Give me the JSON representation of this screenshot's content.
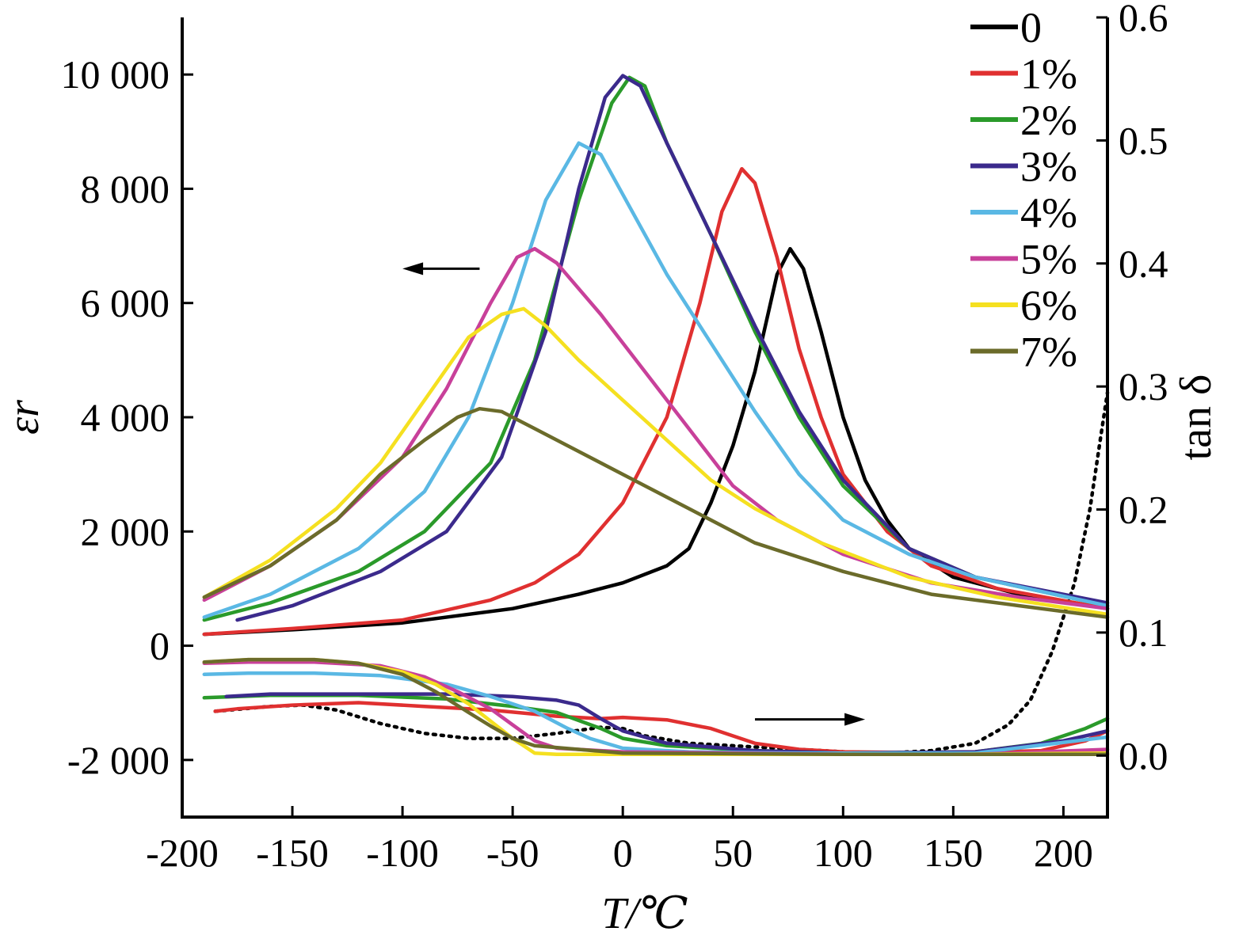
{
  "chart_data": {
    "type": "line",
    "xlabel": "T/℃",
    "ylabel_left": "εr",
    "ylabel_right": "tan δ",
    "xlim": [
      -200,
      220
    ],
    "ylim_left": [
      -3000,
      11000
    ],
    "ylim_right": [
      -0.05,
      0.6
    ],
    "grid": false,
    "legend_position": "top-right",
    "x_ticks": [
      {
        "value": -200,
        "label": "-200"
      },
      {
        "value": -150,
        "label": "-150"
      },
      {
        "value": -100,
        "label": "-100"
      },
      {
        "value": -50,
        "label": "-50"
      },
      {
        "value": 0,
        "label": "0"
      },
      {
        "value": 50,
        "label": "50"
      },
      {
        "value": 100,
        "label": "100"
      },
      {
        "value": 150,
        "label": "150"
      },
      {
        "value": 200,
        "label": "200"
      }
    ],
    "y_left_ticks": [
      {
        "value": 10000,
        "label": "10 000"
      },
      {
        "value": 8000,
        "label": "8 000"
      },
      {
        "value": 6000,
        "label": "6 000"
      },
      {
        "value": 4000,
        "label": "4 000"
      },
      {
        "value": 2000,
        "label": "2 000"
      },
      {
        "value": 0,
        "label": "0"
      },
      {
        "value": -2000,
        "label": "-2 000"
      }
    ],
    "y_right_ticks": [
      {
        "value": 0.6,
        "label": "0.6"
      },
      {
        "value": 0.5,
        "label": "0.5"
      },
      {
        "value": 0.4,
        "label": "0.4"
      },
      {
        "value": 0.3,
        "label": "0.3"
      },
      {
        "value": 0.2,
        "label": "0.2"
      },
      {
        "value": 0.1,
        "label": "0.1"
      },
      {
        "value": 0.0,
        "label": "0.0"
      }
    ],
    "series": [
      {
        "name": "0",
        "color": "#000000",
        "epsilon": [
          [
            -190,
            200
          ],
          [
            -150,
            280
          ],
          [
            -100,
            400
          ],
          [
            -50,
            650
          ],
          [
            -20,
            900
          ],
          [
            0,
            1100
          ],
          [
            20,
            1400
          ],
          [
            30,
            1700
          ],
          [
            40,
            2500
          ],
          [
            50,
            3500
          ],
          [
            60,
            4800
          ],
          [
            70,
            6500
          ],
          [
            76,
            6950
          ],
          [
            82,
            6600
          ],
          [
            90,
            5500
          ],
          [
            100,
            4000
          ],
          [
            110,
            2900
          ],
          [
            120,
            2200
          ],
          [
            130,
            1700
          ],
          [
            150,
            1200
          ],
          [
            180,
            900
          ],
          [
            220,
            650
          ]
        ],
        "tan_delta": [
          [
            -185,
            0.036
          ],
          [
            -160,
            0.04
          ],
          [
            -145,
            0.041
          ],
          [
            -130,
            0.037
          ],
          [
            -110,
            0.026
          ],
          [
            -90,
            0.018
          ],
          [
            -70,
            0.014
          ],
          [
            -50,
            0.014
          ],
          [
            -30,
            0.018
          ],
          [
            -10,
            0.023
          ],
          [
            0,
            0.022
          ],
          [
            10,
            0.016
          ],
          [
            30,
            0.01
          ],
          [
            50,
            0.008
          ],
          [
            70,
            0.006
          ],
          [
            100,
            0.003
          ],
          [
            120,
            0.002
          ],
          [
            140,
            0.004
          ],
          [
            160,
            0.01
          ],
          [
            175,
            0.025
          ],
          [
            185,
            0.045
          ],
          [
            195,
            0.085
          ],
          [
            205,
            0.14
          ],
          [
            212,
            0.2
          ],
          [
            217,
            0.26
          ],
          [
            220,
            0.295
          ]
        ]
      },
      {
        "name": "1%",
        "color": "#e03030",
        "epsilon": [
          [
            -190,
            200
          ],
          [
            -150,
            300
          ],
          [
            -100,
            450
          ],
          [
            -60,
            800
          ],
          [
            -40,
            1100
          ],
          [
            -20,
            1600
          ],
          [
            0,
            2500
          ],
          [
            20,
            4000
          ],
          [
            35,
            6000
          ],
          [
            45,
            7600
          ],
          [
            54,
            8350
          ],
          [
            60,
            8100
          ],
          [
            70,
            6800
          ],
          [
            80,
            5200
          ],
          [
            90,
            4000
          ],
          [
            100,
            3000
          ],
          [
            120,
            2000
          ],
          [
            140,
            1400
          ],
          [
            170,
            1000
          ],
          [
            220,
            650
          ]
        ],
        "tan_delta": [
          [
            -185,
            0.036
          ],
          [
            -175,
            0.038
          ],
          [
            -150,
            0.041
          ],
          [
            -120,
            0.043
          ],
          [
            -90,
            0.04
          ],
          [
            -60,
            0.037
          ],
          [
            -30,
            0.032
          ],
          [
            -10,
            0.03
          ],
          [
            0,
            0.031
          ],
          [
            20,
            0.029
          ],
          [
            40,
            0.022
          ],
          [
            60,
            0.01
          ],
          [
            80,
            0.005
          ],
          [
            100,
            0.003
          ],
          [
            150,
            0.002
          ],
          [
            190,
            0.004
          ],
          [
            210,
            0.012
          ],
          [
            220,
            0.02
          ]
        ]
      },
      {
        "name": "2%",
        "color": "#2a9a2a",
        "epsilon": [
          [
            -190,
            450
          ],
          [
            -160,
            750
          ],
          [
            -120,
            1300
          ],
          [
            -90,
            2000
          ],
          [
            -60,
            3200
          ],
          [
            -40,
            5000
          ],
          [
            -20,
            7800
          ],
          [
            -5,
            9500
          ],
          [
            3,
            9950
          ],
          [
            10,
            9800
          ],
          [
            20,
            8800
          ],
          [
            40,
            7200
          ],
          [
            60,
            5500
          ],
          [
            80,
            4000
          ],
          [
            100,
            2800
          ],
          [
            130,
            1700
          ],
          [
            160,
            1200
          ],
          [
            220,
            700
          ]
        ],
        "tan_delta": [
          [
            -190,
            0.047
          ],
          [
            -160,
            0.049
          ],
          [
            -120,
            0.049
          ],
          [
            -80,
            0.046
          ],
          [
            -50,
            0.04
          ],
          [
            -30,
            0.035
          ],
          [
            -10,
            0.022
          ],
          [
            0,
            0.014
          ],
          [
            20,
            0.008
          ],
          [
            60,
            0.004
          ],
          [
            100,
            0.002
          ],
          [
            160,
            0.003
          ],
          [
            190,
            0.01
          ],
          [
            210,
            0.022
          ],
          [
            220,
            0.03
          ]
        ]
      },
      {
        "name": "3%",
        "color": "#3b2a8c",
        "epsilon": [
          [
            -175,
            450
          ],
          [
            -150,
            700
          ],
          [
            -110,
            1300
          ],
          [
            -80,
            2000
          ],
          [
            -55,
            3300
          ],
          [
            -35,
            5500
          ],
          [
            -20,
            8000
          ],
          [
            -8,
            9600
          ],
          [
            0,
            9980
          ],
          [
            8,
            9800
          ],
          [
            20,
            8800
          ],
          [
            40,
            7200
          ],
          [
            60,
            5600
          ],
          [
            80,
            4100
          ],
          [
            100,
            2900
          ],
          [
            130,
            1700
          ],
          [
            160,
            1200
          ],
          [
            220,
            750
          ]
        ],
        "tan_delta": [
          [
            -180,
            0.048
          ],
          [
            -160,
            0.05
          ],
          [
            -120,
            0.05
          ],
          [
            -80,
            0.05
          ],
          [
            -50,
            0.048
          ],
          [
            -30,
            0.045
          ],
          [
            -20,
            0.041
          ],
          [
            -10,
            0.03
          ],
          [
            0,
            0.02
          ],
          [
            20,
            0.01
          ],
          [
            60,
            0.004
          ],
          [
            100,
            0.002
          ],
          [
            160,
            0.003
          ],
          [
            200,
            0.012
          ],
          [
            220,
            0.02
          ]
        ]
      },
      {
        "name": "4%",
        "color": "#5ab8e4",
        "epsilon": [
          [
            -190,
            500
          ],
          [
            -160,
            900
          ],
          [
            -120,
            1700
          ],
          [
            -90,
            2700
          ],
          [
            -70,
            4000
          ],
          [
            -50,
            6000
          ],
          [
            -35,
            7800
          ],
          [
            -20,
            8800
          ],
          [
            -10,
            8600
          ],
          [
            0,
            7900
          ],
          [
            20,
            6500
          ],
          [
            40,
            5300
          ],
          [
            60,
            4100
          ],
          [
            80,
            3000
          ],
          [
            100,
            2200
          ],
          [
            130,
            1600
          ],
          [
            160,
            1200
          ],
          [
            220,
            700
          ]
        ],
        "tan_delta": [
          [
            -190,
            0.066
          ],
          [
            -170,
            0.067
          ],
          [
            -140,
            0.067
          ],
          [
            -110,
            0.065
          ],
          [
            -80,
            0.058
          ],
          [
            -60,
            0.048
          ],
          [
            -40,
            0.036
          ],
          [
            -25,
            0.022
          ],
          [
            -15,
            0.014
          ],
          [
            0,
            0.006
          ],
          [
            30,
            0.003
          ],
          [
            80,
            0.002
          ],
          [
            160,
            0.002
          ],
          [
            220,
            0.015
          ]
        ]
      },
      {
        "name": "5%",
        "color": "#c8409a",
        "epsilon": [
          [
            -190,
            800
          ],
          [
            -160,
            1400
          ],
          [
            -130,
            2200
          ],
          [
            -100,
            3300
          ],
          [
            -80,
            4500
          ],
          [
            -60,
            6000
          ],
          [
            -48,
            6800
          ],
          [
            -40,
            6950
          ],
          [
            -30,
            6700
          ],
          [
            -10,
            5800
          ],
          [
            10,
            4800
          ],
          [
            30,
            3800
          ],
          [
            50,
            2800
          ],
          [
            70,
            2200
          ],
          [
            100,
            1600
          ],
          [
            140,
            1100
          ],
          [
            180,
            850
          ],
          [
            220,
            650
          ]
        ],
        "tan_delta": [
          [
            -190,
            0.075
          ],
          [
            -170,
            0.076
          ],
          [
            -140,
            0.076
          ],
          [
            -110,
            0.073
          ],
          [
            -90,
            0.064
          ],
          [
            -75,
            0.052
          ],
          [
            -60,
            0.038
          ],
          [
            -50,
            0.025
          ],
          [
            -40,
            0.012
          ],
          [
            -30,
            0.006
          ],
          [
            0,
            0.003
          ],
          [
            100,
            0.001
          ],
          [
            160,
            0.001
          ],
          [
            220,
            0.005
          ]
        ]
      },
      {
        "name": "6%",
        "color": "#f5e020",
        "epsilon": [
          [
            -190,
            850
          ],
          [
            -160,
            1500
          ],
          [
            -130,
            2400
          ],
          [
            -110,
            3200
          ],
          [
            -90,
            4300
          ],
          [
            -70,
            5400
          ],
          [
            -55,
            5800
          ],
          [
            -45,
            5900
          ],
          [
            -35,
            5600
          ],
          [
            -20,
            5000
          ],
          [
            0,
            4300
          ],
          [
            20,
            3600
          ],
          [
            40,
            2900
          ],
          [
            60,
            2400
          ],
          [
            90,
            1800
          ],
          [
            130,
            1200
          ],
          [
            170,
            850
          ],
          [
            220,
            550
          ]
        ],
        "tan_delta": [
          [
            -190,
            0.076
          ],
          [
            -170,
            0.078
          ],
          [
            -140,
            0.078
          ],
          [
            -120,
            0.075
          ],
          [
            -100,
            0.068
          ],
          [
            -85,
            0.058
          ],
          [
            -70,
            0.042
          ],
          [
            -60,
            0.028
          ],
          [
            -50,
            0.014
          ],
          [
            -40,
            0.002
          ],
          [
            -30,
            0.001
          ],
          [
            50,
            0.001
          ],
          [
            150,
            0.001
          ],
          [
            220,
            0.002
          ]
        ]
      },
      {
        "name": "7%",
        "color": "#6b6b2a",
        "epsilon": [
          [
            -190,
            850
          ],
          [
            -160,
            1400
          ],
          [
            -130,
            2200
          ],
          [
            -110,
            3000
          ],
          [
            -90,
            3600
          ],
          [
            -75,
            4000
          ],
          [
            -65,
            4150
          ],
          [
            -55,
            4100
          ],
          [
            -40,
            3800
          ],
          [
            -20,
            3400
          ],
          [
            0,
            3000
          ],
          [
            30,
            2400
          ],
          [
            60,
            1800
          ],
          [
            100,
            1300
          ],
          [
            140,
            900
          ],
          [
            180,
            700
          ],
          [
            220,
            500
          ]
        ],
        "tan_delta": [
          [
            -190,
            0.076
          ],
          [
            -170,
            0.078
          ],
          [
            -140,
            0.078
          ],
          [
            -120,
            0.075
          ],
          [
            -100,
            0.066
          ],
          [
            -85,
            0.052
          ],
          [
            -70,
            0.035
          ],
          [
            -60,
            0.024
          ],
          [
            -50,
            0.014
          ],
          [
            -40,
            0.008
          ],
          [
            0,
            0.002
          ],
          [
            100,
            0.001
          ],
          [
            220,
            0.001
          ]
        ]
      }
    ],
    "annotations": [
      {
        "type": "arrow",
        "direction": "left",
        "points_to": "εr axis",
        "x_from": -65,
        "x_to": -100,
        "y": 6600
      },
      {
        "type": "arrow",
        "direction": "right",
        "points_to": "tan δ axis",
        "x_from": 60,
        "x_to": 110,
        "y": -1290
      }
    ]
  }
}
